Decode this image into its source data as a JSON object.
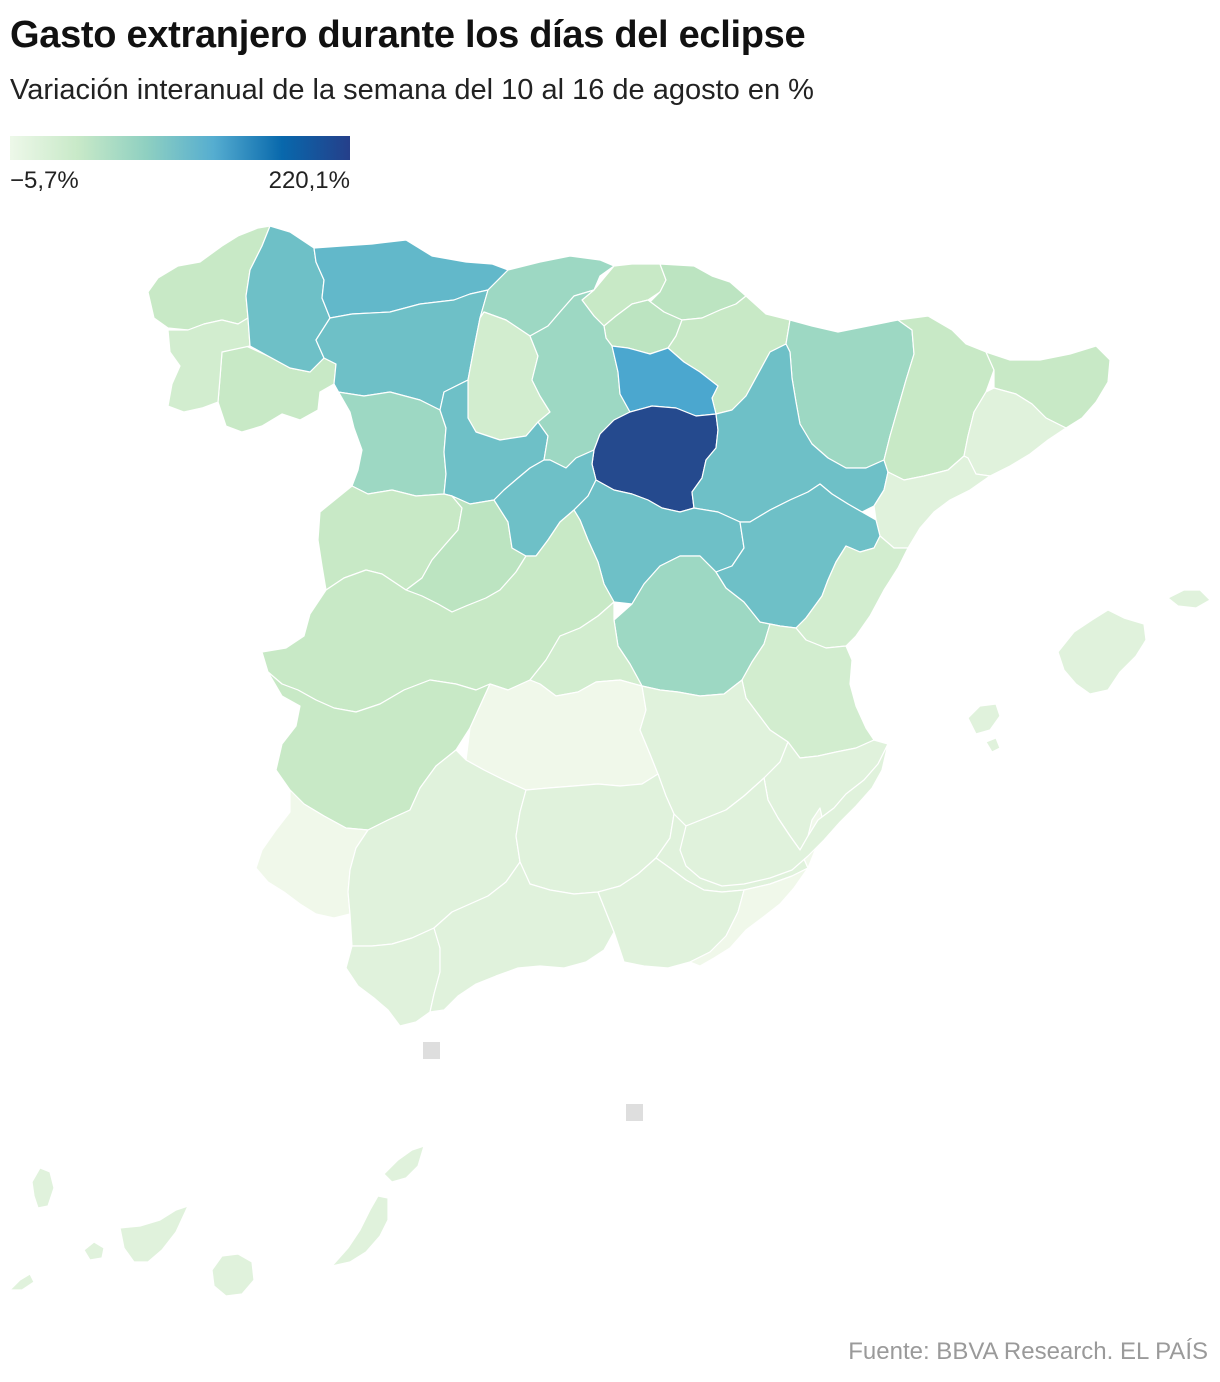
{
  "title": "Gasto extranjero durante los días del eclipse",
  "subtitle": "Variación interanual de la semana del 10 al 16 de agosto en %",
  "legend": {
    "min_label": "−5,7%",
    "max_label": "220,1%",
    "min_value": -5.7,
    "max_value": 220.1,
    "colors": [
      "#edf8e9",
      "#c8e9c8",
      "#8fd0c1",
      "#55add0",
      "#0868ac",
      "#253f8a"
    ]
  },
  "source": "Fuente: BBVA Research. EL PAÍS",
  "colors": {
    "c0": "#f0f8ea",
    "c1": "#e0f2dc",
    "c2": "#d2edcf",
    "c3": "#c8e9c6",
    "c4": "#bce4c1",
    "c5": "#9dd8c3",
    "c6": "#88cfc3",
    "c7": "#6ec0c7",
    "c8": "#62b8ca",
    "c9": "#4ba7cf",
    "c10": "#254a8e",
    "stroke": "#ffffff",
    "marker": "#dedede"
  },
  "map": {
    "regions": [
      {
        "name": "galicia-north",
        "fill": "c3"
      },
      {
        "name": "galicia-south",
        "fill": "c3"
      },
      {
        "name": "galicia-west",
        "fill": "c2"
      },
      {
        "name": "asturias",
        "fill": "c8"
      },
      {
        "name": "leon-west",
        "fill": "c7"
      },
      {
        "name": "palencia-north",
        "fill": "c7"
      },
      {
        "name": "cantabria",
        "fill": "c5"
      },
      {
        "name": "burgos",
        "fill": "c2"
      },
      {
        "name": "basque-1",
        "fill": "c3"
      },
      {
        "name": "basque-2",
        "fill": "c4"
      },
      {
        "name": "navarra",
        "fill": "c3"
      },
      {
        "name": "la-rioja",
        "fill": "c4"
      },
      {
        "name": "zamora",
        "fill": "c5"
      },
      {
        "name": "valladolid",
        "fill": "c7"
      },
      {
        "name": "soria-north",
        "fill": "c5"
      },
      {
        "name": "soria-east",
        "fill": "c9"
      },
      {
        "name": "guadalajara",
        "fill": "c10"
      },
      {
        "name": "huesca",
        "fill": "c5"
      },
      {
        "name": "lleida",
        "fill": "c3"
      },
      {
        "name": "zaragoza",
        "fill": "c7"
      },
      {
        "name": "girona",
        "fill": "c3"
      },
      {
        "name": "barcelona",
        "fill": "c1"
      },
      {
        "name": "tarragona",
        "fill": "c1"
      },
      {
        "name": "salamanca",
        "fill": "c3"
      },
      {
        "name": "avila",
        "fill": "c4"
      },
      {
        "name": "segovia",
        "fill": "c7"
      },
      {
        "name": "madrid",
        "fill": "c7"
      },
      {
        "name": "cuenca",
        "fill": "c5"
      },
      {
        "name": "teruel",
        "fill": "c7"
      },
      {
        "name": "castellon",
        "fill": "c2"
      },
      {
        "name": "caceres",
        "fill": "c3"
      },
      {
        "name": "toledo",
        "fill": "c2"
      },
      {
        "name": "valencia",
        "fill": "c2"
      },
      {
        "name": "badajoz",
        "fill": "c3"
      },
      {
        "name": "ciudad-real",
        "fill": "c0"
      },
      {
        "name": "albacete",
        "fill": "c1"
      },
      {
        "name": "alicante",
        "fill": "c1"
      },
      {
        "name": "huelva",
        "fill": "c0"
      },
      {
        "name": "sevilla",
        "fill": "c1"
      },
      {
        "name": "cordoba",
        "fill": "c1"
      },
      {
        "name": "jaen",
        "fill": "c1"
      },
      {
        "name": "murcia",
        "fill": "c1"
      },
      {
        "name": "cadiz",
        "fill": "c1"
      },
      {
        "name": "malaga",
        "fill": "c1"
      },
      {
        "name": "granada",
        "fill": "c1"
      },
      {
        "name": "almeria",
        "fill": "c0"
      },
      {
        "name": "mallorca",
        "fill": "c1"
      },
      {
        "name": "menorca",
        "fill": "c1"
      },
      {
        "name": "ibiza",
        "fill": "c1"
      },
      {
        "name": "formentera",
        "fill": "c1"
      },
      {
        "name": "lanzarote",
        "fill": "c1"
      },
      {
        "name": "fuerteventura",
        "fill": "c1"
      },
      {
        "name": "gran-canaria",
        "fill": "c1"
      },
      {
        "name": "tenerife",
        "fill": "c1"
      },
      {
        "name": "la-palma",
        "fill": "c1"
      },
      {
        "name": "la-gomera",
        "fill": "c1"
      },
      {
        "name": "el-hierro",
        "fill": "c1"
      },
      {
        "name": "ceuta-marker",
        "fill": "marker"
      },
      {
        "name": "melilla-marker",
        "fill": "marker"
      }
    ]
  }
}
